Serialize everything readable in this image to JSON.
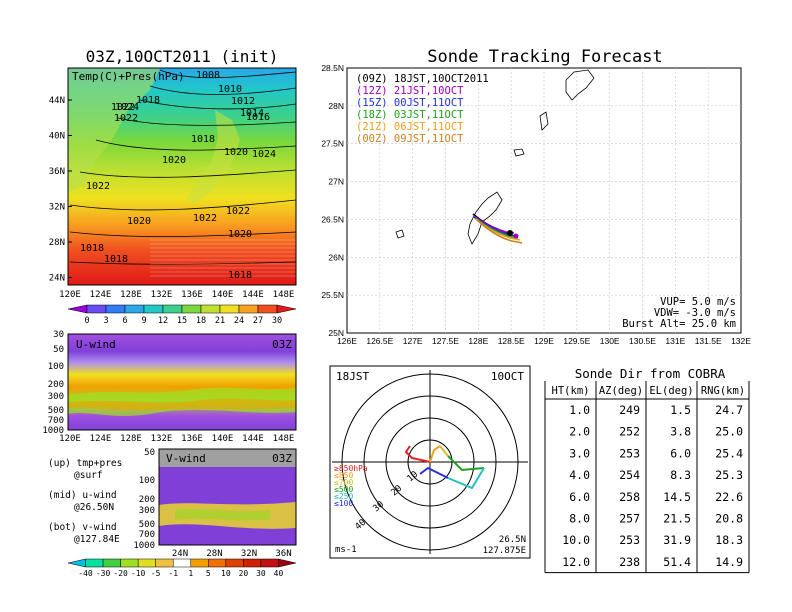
{
  "left_panel": {
    "title": "03Z,10OCT2011 (init)",
    "map_label": "Temp(C)+Pres(hPa)",
    "lat_ticks": [
      "44N",
      "40N",
      "36N",
      "32N",
      "28N",
      "24N"
    ],
    "lon_ticks": [
      "120E",
      "124E",
      "128E",
      "132E",
      "136E",
      "140E",
      "144E",
      "148E"
    ],
    "pressure_labels": [
      "1008",
      "1010",
      "1012",
      "1014",
      "1016",
      "1018",
      "1018",
      "1018",
      "1018",
      "1018",
      "1020",
      "1020",
      "1020",
      "1020",
      "1022",
      "1022",
      "1022",
      "1022",
      "1022",
      "1024",
      "1024"
    ],
    "temp_colorbar": {
      "labels": [
        "0",
        "3",
        "6",
        "9",
        "12",
        "15",
        "18",
        "21",
        "24",
        "27",
        "30"
      ],
      "colors": [
        "#9c00e0",
        "#6a4cf0",
        "#2f7cf6",
        "#2aa8e8",
        "#20c8c8",
        "#3cd08c",
        "#7ad83c",
        "#c0e030",
        "#f0e020",
        "#f8a020",
        "#f05020",
        "#e01818"
      ]
    },
    "uwind": {
      "label": "U-wind",
      "time": "03Z",
      "y_ticks": [
        "30",
        "50",
        "100",
        "200",
        "300",
        "500",
        "700",
        "1000"
      ],
      "x_ticks": [
        "120E",
        "124E",
        "128E",
        "132E",
        "136E",
        "140E",
        "144E",
        "148E"
      ]
    },
    "vwind": {
      "label": "V-wind",
      "time": "03Z",
      "y_ticks": [
        "50",
        "100",
        "200",
        "300",
        "500",
        "700",
        "1000"
      ],
      "x_ticks": [
        "24N",
        "28N",
        "32N",
        "36N"
      ]
    },
    "legend_text": [
      "(up) tmp+pres",
      "@surf",
      "(mid) u-wind",
      "@26.50N",
      "(bot) v-wind",
      "@127.84E"
    ],
    "wind_colorbar": {
      "labels": [
        "-40",
        "-30",
        "-20",
        "-10",
        "-5",
        "-1",
        "1",
        "5",
        "10",
        "20",
        "30",
        "40"
      ],
      "colors": [
        "#00c0e0",
        "#00e0a0",
        "#40d040",
        "#a0e020",
        "#e0e020",
        "#f0c040",
        "#ffffff",
        "#f0a000",
        "#f07000",
        "#e04000",
        "#d02000",
        "#c01010",
        "#a00010"
      ]
    }
  },
  "tracking": {
    "title": "Sonde Tracking Forecast",
    "lat_ticks": [
      "28.5N",
      "28N",
      "27.5N",
      "27N",
      "26.5N",
      "26N",
      "25.5N",
      "25N"
    ],
    "lon_ticks": [
      "126E",
      "126.5E",
      "127E",
      "127.5E",
      "128E",
      "128.5E",
      "129E",
      "129.5E",
      "130E",
      "130.5E",
      "131E",
      "131.5E",
      "132E"
    ],
    "legend": [
      {
        "text": "(09Z)  18JST,10OCT2011",
        "color": "#000000"
      },
      {
        "text": "(12Z)  21JST,10OCT",
        "color": "#a000c0"
      },
      {
        "text": "(15Z)  00JST,11OCT",
        "color": "#2030e0"
      },
      {
        "text": "(18Z)  03JST,11OCT",
        "color": "#20a020"
      },
      {
        "text": "(21Z)  06JST,11OCT",
        "color": "#f0a020"
      },
      {
        "text": "(00Z)  09JST,11OCT",
        "color": "#d08020"
      }
    ],
    "params": [
      "VUP=  5.0  m/s",
      "VDW= -3.0  m/s",
      "Burst Alt=  25.0  km"
    ]
  },
  "polar": {
    "time": "18JST",
    "date": "10OCT",
    "levels": [
      {
        "text": "≥850hPa",
        "color": "#e02020"
      },
      {
        "text": "≤850",
        "color": "#f0a020"
      },
      {
        "text": "≤700",
        "color": "#d0c020"
      },
      {
        "text": "≤500",
        "color": "#20a020"
      },
      {
        "text": "≤250",
        "color": "#20c0c0"
      },
      {
        "text": "≤100",
        "color": "#2030e0"
      }
    ],
    "ring_labels": [
      "10",
      "20",
      "30",
      "40"
    ],
    "unit": "ms-1",
    "lat": "26.5N",
    "lon": "127.875E"
  },
  "cobra_table": {
    "title": "Sonde Dir from COBRA",
    "headers": [
      "HT(km)",
      "AZ(deg)",
      "EL(deg)",
      "RNG(km)"
    ],
    "rows": [
      [
        "1.0",
        "249",
        "1.5",
        "24.7"
      ],
      [
        "2.0",
        "252",
        "3.8",
        "25.0"
      ],
      [
        "3.0",
        "253",
        "6.0",
        "25.4"
      ],
      [
        "4.0",
        "254",
        "8.3",
        "25.3"
      ],
      [
        "6.0",
        "258",
        "14.5",
        "22.6"
      ],
      [
        "8.0",
        "257",
        "21.5",
        "20.8"
      ],
      [
        "10.0",
        "253",
        "31.9",
        "18.3"
      ],
      [
        "12.0",
        "238",
        "51.4",
        "14.9"
      ]
    ]
  }
}
